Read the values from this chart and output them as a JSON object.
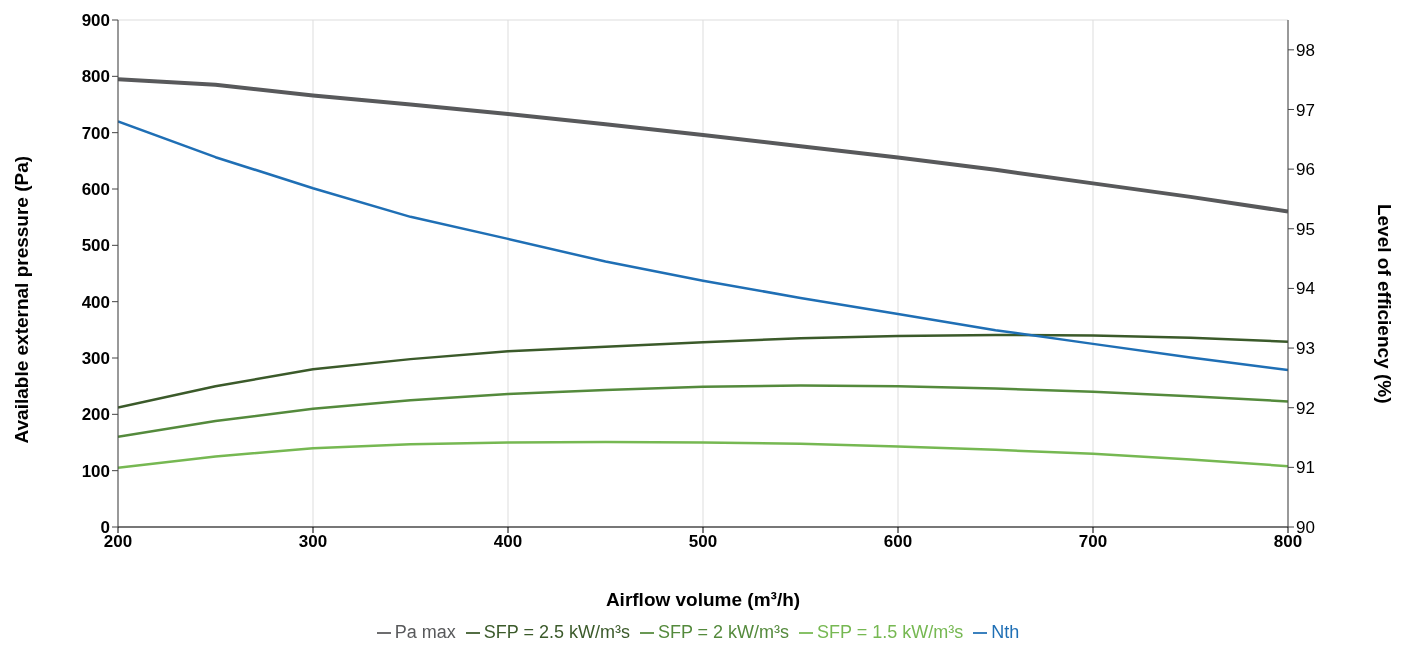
{
  "chart_data": {
    "type": "line",
    "xlabel": "Airflow volume (m³/h)",
    "ylabel": "Available external pressure (Pa)",
    "y2label": "Level of efficiency (%)",
    "x": [
      200,
      250,
      300,
      350,
      400,
      450,
      500,
      550,
      600,
      650,
      700,
      750,
      800
    ],
    "series": [
      {
        "name": "Pa max",
        "color": "#58595b",
        "values": [
          795,
          785,
          766,
          750,
          733,
          715,
          696,
          676,
          656,
          634,
          610,
          586,
          560
        ]
      },
      {
        "name": "SFP = 2.5 kW/m³s",
        "color": "#3b5a2a",
        "values": [
          212,
          250,
          280,
          298,
          312,
          320,
          328,
          335,
          339,
          341,
          340,
          336,
          329
        ]
      },
      {
        "name": "SFP = 2 kW/m³s",
        "color": "#548a3c",
        "values": [
          160,
          188,
          210,
          225,
          236,
          243,
          249,
          251,
          250,
          246,
          240,
          232,
          223
        ]
      },
      {
        "name": "SFP = 1.5 kW/m³s",
        "color": "#76b852",
        "values": [
          105,
          125,
          140,
          147,
          150,
          151,
          150,
          148,
          143,
          137,
          130,
          120,
          108
        ]
      },
      {
        "name": "Nth",
        "color": "#1f6fb5",
        "axis": "y2",
        "values": [
          96.8,
          96.2,
          95.68,
          95.2,
          94.83,
          94.45,
          94.13,
          93.84,
          93.57,
          93.3,
          93.07,
          92.84,
          92.63
        ]
      }
    ],
    "xlim": [
      200,
      800
    ],
    "xticks": [
      200,
      300,
      400,
      500,
      600,
      700,
      800
    ],
    "ylim": [
      0,
      900
    ],
    "yticks": [
      0,
      100,
      200,
      300,
      400,
      500,
      600,
      700,
      800,
      900
    ],
    "y2lim": [
      90,
      98.5
    ],
    "y2ticks": [
      90,
      91,
      92,
      93,
      94,
      95,
      96,
      97,
      98
    ],
    "grid": true,
    "legend": "bottom",
    "marker": "none",
    "line_style": "solid"
  }
}
